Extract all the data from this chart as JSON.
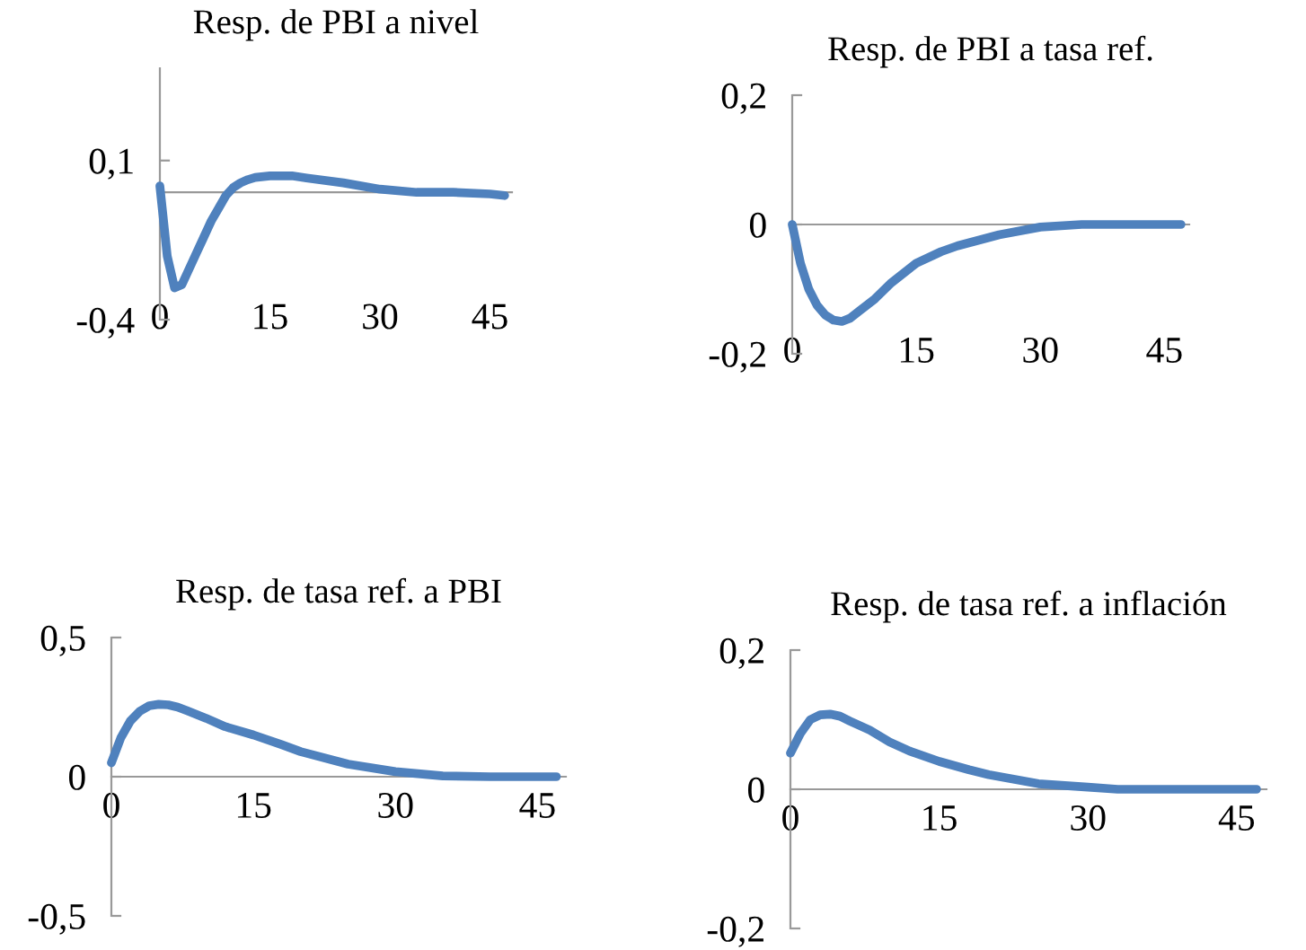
{
  "chart_data": [
    {
      "type": "line",
      "title": "Resp. de PBI a nivel",
      "xlim": [
        0,
        48
      ],
      "xticks": [
        0,
        15,
        30,
        45
      ],
      "ylim": [
        -0.4,
        0.39
      ],
      "yticks": [
        {
          "value": -0.4,
          "label": "-0,4"
        },
        {
          "value": 0.1,
          "label": "0,1"
        }
      ],
      "marker": "none",
      "line_style": "solid",
      "series": [
        {
          "color": "#4f81bd",
          "x": [
            0,
            1,
            2,
            3,
            4,
            5,
            6,
            7,
            8,
            9,
            10,
            11,
            12,
            13,
            15,
            18,
            20,
            25,
            30,
            35,
            40,
            45,
            47
          ],
          "values": [
            0.02,
            -0.2,
            -0.3,
            -0.29,
            -0.24,
            -0.19,
            -0.14,
            -0.09,
            -0.05,
            -0.01,
            0.015,
            0.03,
            0.04,
            0.047,
            0.052,
            0.052,
            0.045,
            0.03,
            0.01,
            0.0,
            0.0,
            -0.005,
            -0.01
          ]
        }
      ]
    },
    {
      "type": "line",
      "title": "Resp. de PBI a tasa ref.",
      "xlim": [
        0,
        48
      ],
      "xticks": [
        0,
        15,
        30,
        45
      ],
      "ylim": [
        -0.2,
        0.2
      ],
      "yticks": [
        {
          "value": -0.2,
          "label": "-0,2"
        },
        0,
        {
          "value": 0.2,
          "label": "0,2"
        }
      ],
      "marker": "none",
      "line_style": "solid",
      "series": [
        {
          "color": "#4f81bd",
          "x": [
            0,
            1,
            2,
            3,
            4,
            5,
            6,
            7,
            8,
            10,
            12,
            15,
            18,
            20,
            25,
            30,
            35,
            40,
            47
          ],
          "values": [
            0,
            -0.06,
            -0.1,
            -0.125,
            -0.14,
            -0.148,
            -0.15,
            -0.145,
            -0.135,
            -0.115,
            -0.09,
            -0.06,
            -0.042,
            -0.033,
            -0.016,
            -0.004,
            0,
            0,
            0
          ]
        }
      ]
    },
    {
      "type": "line",
      "title": "Resp. de tasa ref. a PBI",
      "xlim": [
        0,
        48
      ],
      "xticks": [
        0,
        15,
        30,
        45
      ],
      "ylim": [
        -0.5,
        0.5
      ],
      "yticks": [
        {
          "value": -0.5,
          "label": "-0,5"
        },
        0,
        {
          "value": 0.5,
          "label": "0,5"
        }
      ],
      "marker": "none",
      "line_style": "solid",
      "series": [
        {
          "color": "#4f81bd",
          "x": [
            0,
            1,
            2,
            3,
            4,
            5,
            6,
            7,
            8,
            10,
            12,
            15,
            18,
            20,
            25,
            30,
            35,
            40,
            47
          ],
          "values": [
            0.05,
            0.14,
            0.2,
            0.235,
            0.255,
            0.26,
            0.258,
            0.25,
            0.237,
            0.21,
            0.18,
            0.15,
            0.115,
            0.09,
            0.045,
            0.018,
            0.003,
            0,
            0
          ]
        }
      ]
    },
    {
      "type": "line",
      "title": "Resp. de tasa ref. a inflación",
      "xlim": [
        0,
        48
      ],
      "xticks": [
        0,
        15,
        30,
        45
      ],
      "ylim": [
        -0.2,
        0.2
      ],
      "yticks": [
        {
          "value": -0.2,
          "label": "-0,2"
        },
        0,
        {
          "value": 0.2,
          "label": "0,2"
        }
      ],
      "marker": "none",
      "line_style": "solid",
      "series": [
        {
          "color": "#4f81bd",
          "x": [
            0,
            1,
            2,
            3,
            4,
            5,
            6,
            8,
            10,
            12,
            15,
            18,
            20,
            25,
            30,
            33,
            40,
            47
          ],
          "values": [
            0.052,
            0.08,
            0.1,
            0.107,
            0.108,
            0.105,
            0.098,
            0.085,
            0.068,
            0.055,
            0.04,
            0.028,
            0.021,
            0.008,
            0.003,
            0,
            0,
            0
          ]
        }
      ]
    }
  ]
}
